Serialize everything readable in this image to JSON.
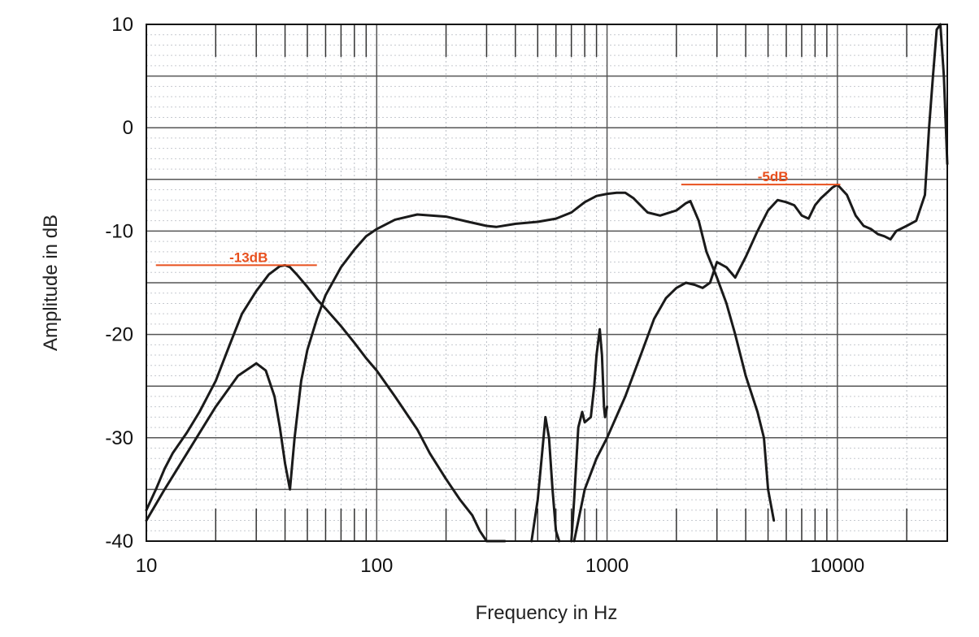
{
  "chart_data": {
    "type": "line",
    "title": "",
    "xlabel": "Frequency in Hz",
    "ylabel": "Amplitude in dB",
    "xscale": "log",
    "xlim": [
      10,
      30000
    ],
    "ylim": [
      -40,
      10
    ],
    "x_ticks": [
      {
        "value": 10,
        "label": "10"
      },
      {
        "value": 100,
        "label": "100"
      },
      {
        "value": 1000,
        "label": "1000"
      },
      {
        "value": 10000,
        "label": "10000"
      }
    ],
    "y_ticks": [
      {
        "value": 10,
        "label": "10"
      },
      {
        "value": 0,
        "label": "0"
      },
      {
        "value": -10,
        "label": "-10"
      },
      {
        "value": -20,
        "label": "-20"
      },
      {
        "value": -30,
        "label": "-30"
      },
      {
        "value": -40,
        "label": "-40"
      }
    ],
    "grid": true,
    "legend": "none",
    "line_color": "#1a1a1a",
    "annotation_color": "#e8501e",
    "series": [
      {
        "x": [
          10,
          11,
          12,
          13,
          15,
          17,
          20,
          23,
          26,
          30,
          34,
          38,
          40,
          42,
          45,
          50,
          55,
          60,
          70,
          80,
          90,
          100,
          120,
          150,
          170,
          200,
          230,
          260,
          280,
          300,
          330,
          360
        ],
        "y": [
          -37,
          -35,
          -33,
          -31.5,
          -29.5,
          -27.5,
          -24.5,
          -21,
          -18,
          -15.8,
          -14.2,
          -13.4,
          -13.3,
          -13.5,
          -14.2,
          -15.4,
          -16.6,
          -17.5,
          -19.2,
          -20.8,
          -22.3,
          -23.5,
          -26,
          -29.2,
          -31.5,
          -34,
          -36,
          -37.5,
          -39,
          -40,
          -40,
          -40
        ]
      },
      {
        "x": [
          10,
          12,
          15,
          20,
          25,
          30,
          33,
          36,
          38,
          40,
          42,
          44,
          47,
          50,
          55,
          60,
          70,
          80,
          90,
          100,
          120,
          150,
          200,
          250,
          300,
          330,
          400,
          500,
          600,
          700,
          800,
          900,
          1000,
          1100,
          1200,
          1300,
          1500,
          1700,
          2000,
          2200,
          2300,
          2500,
          2700,
          3000,
          3300,
          3600,
          4000,
          4500,
          4800,
          5000,
          5300
        ],
        "y": [
          -38,
          -35,
          -31.5,
          -27,
          -24,
          -22.8,
          -23.5,
          -26,
          -29,
          -32.5,
          -35,
          -30,
          -24.5,
          -21.5,
          -18.5,
          -16.2,
          -13.5,
          -11.8,
          -10.5,
          -9.8,
          -8.9,
          -8.4,
          -8.6,
          -9.1,
          -9.5,
          -9.6,
          -9.3,
          -9.1,
          -8.8,
          -8.2,
          -7.2,
          -6.6,
          -6.4,
          -6.3,
          -6.3,
          -6.8,
          -8.2,
          -8.5,
          -8,
          -7.3,
          -7.1,
          -9,
          -12,
          -14.5,
          -17,
          -20,
          -24,
          -27.5,
          -30,
          -35,
          -38
        ]
      },
      {
        "x": [
          470,
          500,
          520,
          540,
          560,
          580,
          600,
          620
        ],
        "y": [
          -40,
          -36,
          -32,
          -28,
          -30,
          -35,
          -39,
          -40
        ]
      },
      {
        "x": [
          700,
          720,
          750,
          780,
          800,
          850,
          880,
          900,
          930,
          950,
          970,
          980,
          1000
        ],
        "y": [
          -40,
          -36,
          -29,
          -27.5,
          -28.5,
          -28,
          -25,
          -22,
          -19.5,
          -22,
          -27,
          -28,
          -27
        ]
      },
      {
        "x": [
          720,
          800,
          900,
          1000,
          1200,
          1400,
          1600,
          1800,
          2000,
          2200,
          2400,
          2600,
          2800,
          3000,
          3300,
          3600,
          4000,
          4500,
          5000,
          5500,
          6000,
          6500,
          7000,
          7500,
          8000,
          8500,
          9000,
          9500,
          10000,
          11000,
          12000,
          13000,
          14000,
          15000,
          16000,
          17000,
          18000,
          20000,
          22000,
          24000,
          25000,
          26000,
          27000,
          28000,
          29000,
          30000
        ],
        "y": [
          -40,
          -35,
          -32,
          -30,
          -26,
          -22,
          -18.5,
          -16.5,
          -15.5,
          -15,
          -15.2,
          -15.5,
          -15,
          -13,
          -13.5,
          -14.5,
          -12.5,
          -10,
          -8,
          -7,
          -7.2,
          -7.5,
          -8.5,
          -8.8,
          -7.5,
          -6.8,
          -6.3,
          -5.8,
          -5.5,
          -6.5,
          -8.5,
          -9.5,
          -9.8,
          -10.3,
          -10.5,
          -10.8,
          -10,
          -9.5,
          -9,
          -6.5,
          0,
          5,
          9.5,
          10,
          5,
          -3.5
        ]
      }
    ],
    "annotations": [
      {
        "text": "-13dB",
        "y": -13.3,
        "x_start": 11,
        "x_end": 55
      },
      {
        "text": "-5dB",
        "y": -5.5,
        "x_start": 2100,
        "x_end": 10300
      }
    ]
  }
}
